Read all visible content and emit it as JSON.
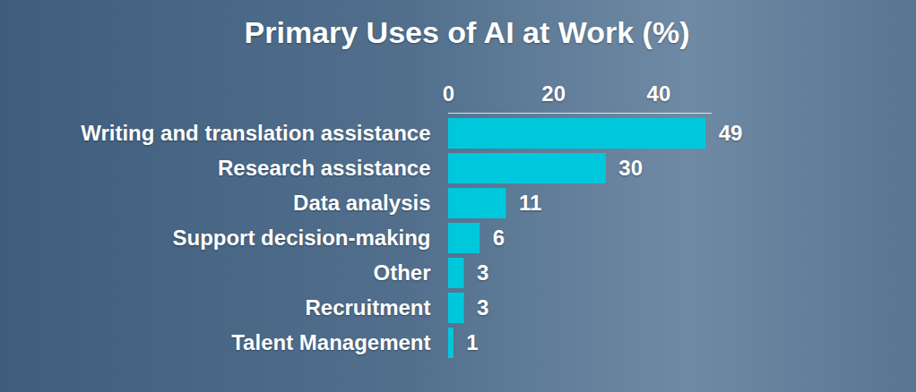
{
  "chart_data": {
    "type": "bar",
    "title": "Primary Uses of AI at Work (%)",
    "orientation": "horizontal",
    "categories": [
      "Writing and translation assistance",
      "Research assistance",
      "Data analysis",
      "Support decision-making",
      "Other",
      "Recruitment",
      "Talent Management"
    ],
    "values": [
      49,
      30,
      11,
      6,
      3,
      3,
      1
    ],
    "color": "#00c8dc",
    "xlim": [
      0,
      50
    ],
    "xticks": [
      0,
      20,
      40
    ],
    "data_labels": true,
    "grid": false
  }
}
